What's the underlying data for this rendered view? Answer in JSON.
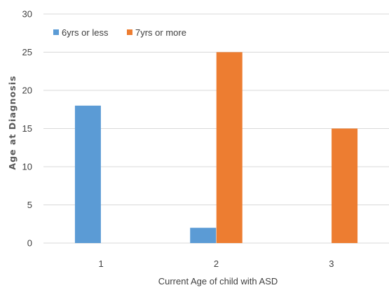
{
  "chart_data": {
    "type": "bar",
    "categories": [
      "1",
      "2",
      "3"
    ],
    "series": [
      {
        "name": "6yrs or less",
        "values": [
          18,
          2,
          0
        ],
        "color": "#5b9bd5"
      },
      {
        "name": "7yrs or more",
        "values": [
          0,
          25,
          15
        ],
        "color": "#ed7d31"
      }
    ],
    "xlabel": "Current Age of child with ASD",
    "ylabel": "Age at Diagnosis",
    "ylim": [
      0,
      30
    ],
    "yticks": [
      "0",
      "5",
      "10",
      "15",
      "20",
      "25",
      "30"
    ],
    "grid": true,
    "legend": "top-left"
  }
}
